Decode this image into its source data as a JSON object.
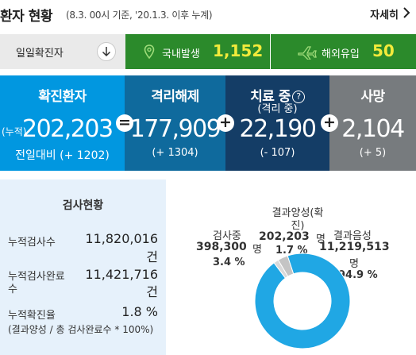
{
  "header": {
    "title": "환자 현황",
    "subtitle": "(8.3. 00시 기준, '20.1.3. 이후 누계)",
    "more_label": "자세히"
  },
  "daily": {
    "label": "일일확진자",
    "domestic_label": "국내발생",
    "domestic_value": "1,152",
    "overseas_label": "해외유입",
    "overseas_value": "50"
  },
  "stats": {
    "confirmed": {
      "title": "확진환자",
      "prefix": "(누적)",
      "value": "202,203",
      "delta": "전일대비 (+ 1202)"
    },
    "released": {
      "title": "격리해제",
      "value": "177,909",
      "delta": "(+ 1304)"
    },
    "treatment": {
      "title": "치료 중",
      "subtitle": "(격리 중)",
      "help": "?",
      "value": "22,190",
      "delta": "(- 107)"
    },
    "deaths": {
      "title": "사망",
      "value": "2,104",
      "delta": "(+ 5)"
    },
    "ops": [
      "=",
      "+",
      "+"
    ]
  },
  "testing": {
    "title": "검사현황",
    "rows": [
      {
        "label": "누적검사수",
        "value": "11,820,016",
        "unit": "건"
      },
      {
        "label_line1": "누적검사완료",
        "label_line2": "수",
        "value": "11,421,716",
        "unit": "건"
      },
      {
        "label": "누적확진율",
        "value": "1.8 %"
      }
    ],
    "note": "(결과양성 / 총 검사완료수 * 100%)"
  },
  "results": {
    "testing": {
      "label": "검사중",
      "value": "398,300",
      "unit": "명",
      "percent": "3.4 %"
    },
    "positive": {
      "label_line1": "결과양성(확",
      "label_line2": "진)",
      "value": "202,203",
      "unit": "명",
      "percent": "1.7 %"
    },
    "negative": {
      "label": "결과음성",
      "value": "11,219,513",
      "unit": "명",
      "percent": "94.9 %"
    }
  },
  "chart_data": {
    "type": "pie",
    "categories": [
      "결과음성",
      "결과양성(확진)",
      "검사중"
    ],
    "values": [
      94.9,
      1.7,
      3.4
    ],
    "colors": [
      "#20a7e4",
      "#d9d9d9",
      "#c4c4c4"
    ]
  },
  "colors": {
    "daily_green": "#2b8a2b",
    "daily_value": "#f2ea3b",
    "confirmed": "#0197e0",
    "released": "#0f6a9d",
    "treatment": "#143d66",
    "deaths": "#777b7e",
    "testing_panel": "#e6f1fb"
  }
}
